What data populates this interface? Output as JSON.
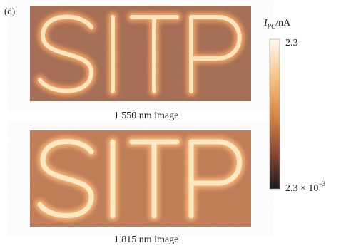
{
  "panel_label": "(d)",
  "images": [
    {
      "caption": "1 550 nm image"
    },
    {
      "caption": "1 815 nm image"
    }
  ],
  "colorbar": {
    "label_symbol": "I",
    "label_subscript": "PC",
    "label_unit": "/nA",
    "max_label": "2.3",
    "min_label_base": "2.3 × 10",
    "min_label_exponent": "−3"
  }
}
